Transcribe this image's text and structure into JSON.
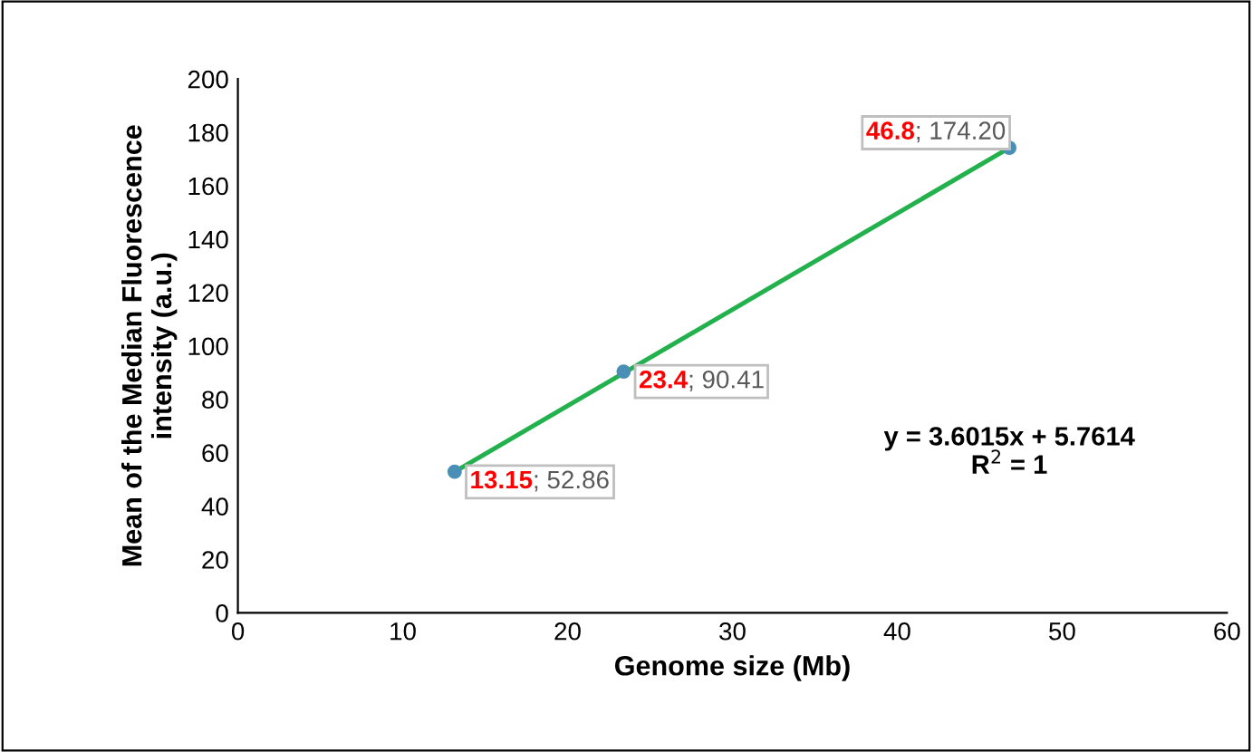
{
  "chart_data": {
    "type": "scatter",
    "xlabel": "Genome size (Mb)",
    "ylabel": "Mean of the Median Fluorescence\nintensity (a.u.)",
    "x": [
      13.15,
      23.4,
      46.8
    ],
    "series": [
      {
        "color": "#4a8fb5",
        "values": [
          52.86,
          90.41,
          174.2
        ],
        "marker": "circle"
      },
      {
        "type": "line",
        "x": [
          13.15,
          46.8
        ],
        "color": "#22b14c",
        "values": [
          52.86,
          174.2
        ],
        "marker": "none"
      }
    ],
    "xlim": [
      0,
      60
    ],
    "xticks": [
      0,
      10,
      20,
      30,
      40,
      50,
      60
    ],
    "ylim": [
      0,
      200
    ],
    "yticks": [
      0,
      20,
      40,
      60,
      80,
      100,
      120,
      140,
      160,
      180,
      200
    ],
    "grid": false,
    "legend": false,
    "annotations": [
      {
        "text": "13.15; 52.86",
        "x": 13.15,
        "y": 52.86
      },
      {
        "text": "23.4; 90.41",
        "x": 23.4,
        "y": 90.41
      },
      {
        "text": "46.8; 174.20",
        "x": 46.8,
        "y": 174.2
      },
      "y = 3.6015x + 5.7614\nR$^{2}$ = 1"
    ]
  }
}
